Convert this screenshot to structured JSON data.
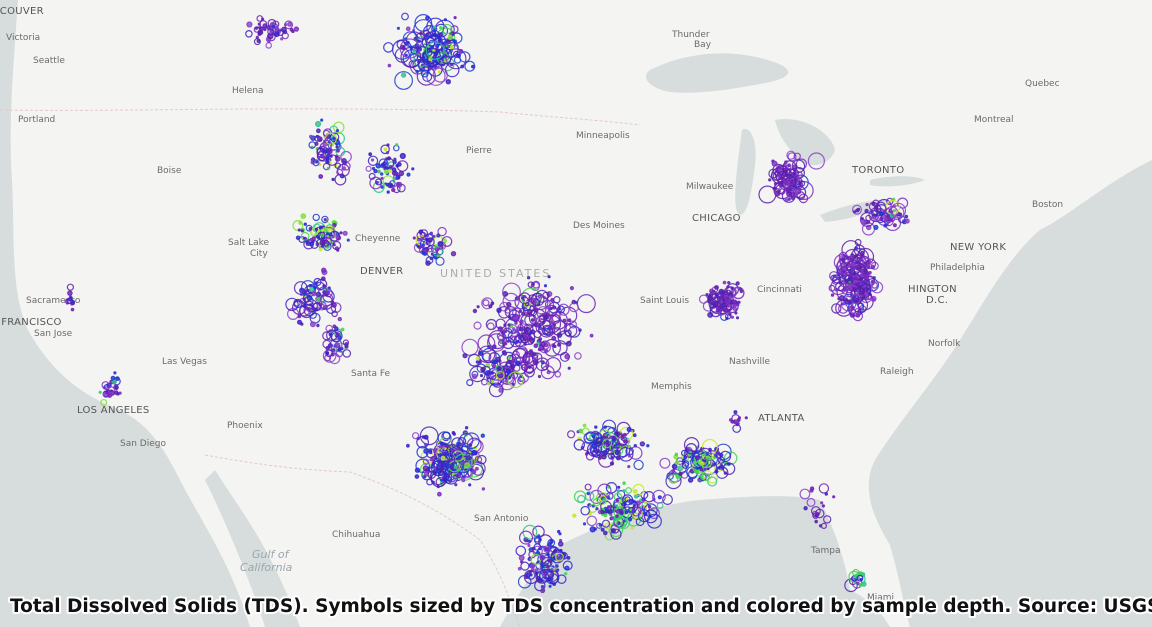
{
  "map": {
    "caption": "Total Dissolved Solids (TDS). Symbols sized by TDS concentration and colored by sample depth. Source: USGS",
    "country_label": "UNITED STATES",
    "water_labels": [
      "Gulf of",
      "California"
    ],
    "cities": [
      {
        "name": "NCOUVER",
        "major": true
      },
      {
        "name": "Victoria",
        "major": false
      },
      {
        "name": "Seattle",
        "major": false
      },
      {
        "name": "Portland",
        "major": false
      },
      {
        "name": "Boise",
        "major": false
      },
      {
        "name": "Helena",
        "major": false
      },
      {
        "name": "Salt Lake",
        "major": false
      },
      {
        "name": "City",
        "major": false
      },
      {
        "name": "Sacramento",
        "major": false
      },
      {
        "name": "N FRANCISCO",
        "major": true
      },
      {
        "name": "San Jose",
        "major": false
      },
      {
        "name": "Las Vegas",
        "major": false
      },
      {
        "name": "LOS ANGELES",
        "major": true
      },
      {
        "name": "San Diego",
        "major": false
      },
      {
        "name": "Phoenix",
        "major": false
      },
      {
        "name": "Chihuahua",
        "major": false
      },
      {
        "name": "Santa Fe",
        "major": false
      },
      {
        "name": "DENVER",
        "major": true
      },
      {
        "name": "Cheyenne",
        "major": false
      },
      {
        "name": "Pierre",
        "major": false
      },
      {
        "name": "Minneapolis",
        "major": false
      },
      {
        "name": "Thunder",
        "major": false
      },
      {
        "name": "Bay",
        "major": false
      },
      {
        "name": "Des Moines",
        "major": false
      },
      {
        "name": "Milwaukee",
        "major": false
      },
      {
        "name": "CHICAGO",
        "major": true
      },
      {
        "name": "Saint Louis",
        "major": false
      },
      {
        "name": "Cincinnati",
        "major": false
      },
      {
        "name": "Nashville",
        "major": false
      },
      {
        "name": "Memphis",
        "major": false
      },
      {
        "name": "ATLANTA",
        "major": true
      },
      {
        "name": "San Antonio",
        "major": false
      },
      {
        "name": "Tampa",
        "major": false
      },
      {
        "name": "Miami",
        "major": false
      },
      {
        "name": "Raleigh",
        "major": false
      },
      {
        "name": "Norfolk",
        "major": false
      },
      {
        "name": "HINGTON",
        "major": true
      },
      {
        "name": "D.C.",
        "major": true
      },
      {
        "name": "Philadelphia",
        "major": false
      },
      {
        "name": "NEW YORK",
        "major": true
      },
      {
        "name": "Boston",
        "major": false
      },
      {
        "name": "Montreal",
        "major": false
      },
      {
        "name": "Quebec",
        "major": false
      },
      {
        "name": "TORONTO",
        "major": true
      }
    ]
  }
}
